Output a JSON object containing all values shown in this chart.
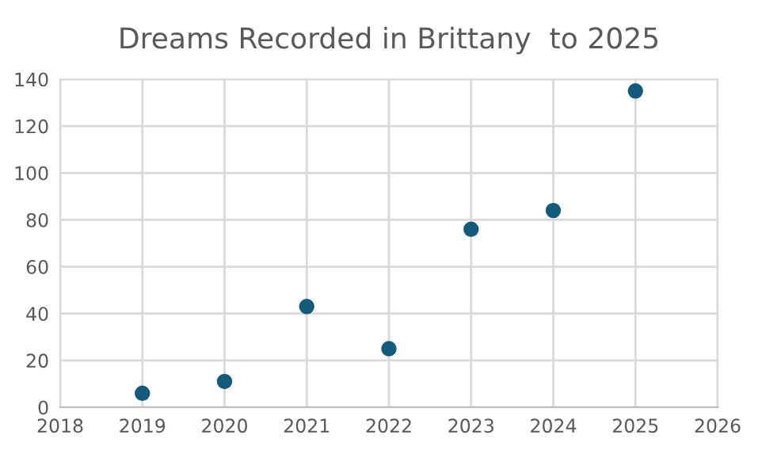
{
  "chart_data": {
    "type": "scatter",
    "title": "Dreams Recorded in Brittany  to 2025",
    "x": [
      2019,
      2020,
      2021,
      2022,
      2023,
      2024,
      2025
    ],
    "series": [
      {
        "color": "#155a7a",
        "values": [
          6,
          11,
          43,
          25,
          76,
          84,
          135
        ]
      }
    ],
    "xlim": [
      2018,
      2026
    ],
    "xticks": [
      2018,
      2019,
      2020,
      2021,
      2022,
      2023,
      2024,
      2025,
      2026
    ],
    "ylim": [
      0,
      140
    ],
    "yticks": [
      0,
      20,
      40,
      60,
      80,
      100,
      120,
      140
    ],
    "grid": true,
    "marker": "circle"
  }
}
